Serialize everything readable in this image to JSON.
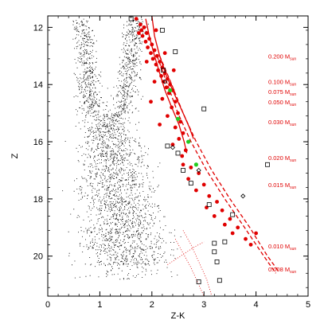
{
  "chart_data": {
    "type": "scatter",
    "xlabel": "Z-K",
    "ylabel": "Z",
    "xlim": [
      0,
      5
    ],
    "ylim": [
      21.4,
      11.6
    ],
    "y_inverted": true,
    "x_ticks": [
      "0",
      "1",
      "2",
      "3",
      "4",
      "5"
    ],
    "x_tick_values": [
      0,
      1,
      2,
      3,
      4,
      5
    ],
    "y_ticks": [
      "12",
      "14",
      "16",
      "18",
      "20"
    ],
    "y_tick_values": [
      12,
      14,
      16,
      18,
      20
    ],
    "colors": {
      "field_points": "#000000",
      "candidates": "#e00000",
      "confirmed": "#22cc22",
      "tracks": "#e00000",
      "labels": "#e00000",
      "open_squares": "#000000"
    },
    "mass_labels": [
      {
        "value": "0.200 M",
        "sub": "sun",
        "z": 13.0
      },
      {
        "value": "0.100 M",
        "sub": "sun",
        "z": 13.9
      },
      {
        "value": "0.075 M",
        "sub": "sun",
        "z": 14.25
      },
      {
        "value": "0.050 M",
        "sub": "sun",
        "z": 14.6
      },
      {
        "value": "0.030 M",
        "sub": "sun",
        "z": 15.3
      },
      {
        "value": "0.020 M",
        "sub": "sun",
        "z": 16.55
      },
      {
        "value": "0.015 M",
        "sub": "sun",
        "z": 17.5
      },
      {
        "value": "0.010 M",
        "sub": "sun",
        "z": 19.65
      },
      {
        "value": "0.008 M",
        "sub": "sun",
        "z": 20.45
      }
    ],
    "tracks": [
      {
        "style": "solid",
        "points": [
          [
            1.88,
            11.7
          ],
          [
            1.95,
            12.3
          ],
          [
            2.05,
            13.0
          ],
          [
            2.15,
            13.6
          ],
          [
            2.25,
            14.2
          ],
          [
            2.38,
            14.8
          ],
          [
            2.52,
            15.4
          ],
          [
            2.62,
            16.0
          ],
          [
            2.67,
            16.4
          ]
        ]
      },
      {
        "style": "solid",
        "points": [
          [
            2.0,
            11.6
          ],
          [
            2.05,
            12.3
          ],
          [
            2.15,
            13.0
          ],
          [
            2.28,
            13.7
          ],
          [
            2.45,
            14.4
          ],
          [
            2.6,
            15.0
          ],
          [
            2.72,
            15.5
          ],
          [
            2.8,
            15.9
          ]
        ]
      },
      {
        "style": "dashed",
        "points": [
          [
            2.1,
            13.0
          ],
          [
            2.3,
            14.0
          ],
          [
            2.5,
            15.0
          ],
          [
            2.75,
            16.0
          ],
          [
            3.05,
            17.0
          ],
          [
            3.4,
            18.0
          ],
          [
            3.78,
            19.0
          ],
          [
            4.15,
            20.0
          ],
          [
            4.38,
            20.6
          ]
        ]
      },
      {
        "style": "dashed",
        "points": [
          [
            2.15,
            13.0
          ],
          [
            2.38,
            14.0
          ],
          [
            2.6,
            15.0
          ],
          [
            2.85,
            16.0
          ],
          [
            3.15,
            17.0
          ],
          [
            3.5,
            18.0
          ],
          [
            3.88,
            19.0
          ],
          [
            4.22,
            20.0
          ],
          [
            4.42,
            20.5
          ]
        ]
      },
      {
        "style": "dotted",
        "points": [
          [
            2.45,
            19.4
          ],
          [
            2.6,
            19.9
          ],
          [
            2.75,
            20.4
          ],
          [
            2.85,
            20.8
          ],
          [
            2.95,
            21.2
          ],
          [
            3.0,
            21.4
          ]
        ]
      },
      {
        "style": "dotted",
        "points": [
          [
            2.6,
            19.1
          ],
          [
            2.75,
            19.6
          ],
          [
            2.9,
            20.2
          ],
          [
            3.05,
            20.8
          ],
          [
            3.15,
            21.4
          ]
        ]
      },
      {
        "style": "dotted",
        "points": [
          [
            2.3,
            20.3
          ],
          [
            2.55,
            20.0
          ],
          [
            2.8,
            19.7
          ],
          [
            3.0,
            19.5
          ]
        ]
      }
    ],
    "candidates": [
      [
        1.7,
        11.7
      ],
      [
        1.78,
        11.9
      ],
      [
        1.85,
        12.0
      ],
      [
        1.8,
        12.1
      ],
      [
        1.9,
        12.2
      ],
      [
        1.82,
        12.3
      ],
      [
        1.95,
        12.4
      ],
      [
        1.88,
        12.5
      ],
      [
        2.0,
        12.6
      ],
      [
        1.92,
        12.7
      ],
      [
        2.05,
        12.8
      ],
      [
        1.98,
        12.9
      ],
      [
        2.1,
        13.0
      ],
      [
        2.02,
        13.1
      ],
      [
        2.15,
        13.2
      ],
      [
        2.08,
        13.3
      ],
      [
        2.2,
        13.4
      ],
      [
        2.12,
        13.5
      ],
      [
        2.25,
        13.6
      ],
      [
        2.18,
        13.7
      ],
      [
        2.3,
        13.8
      ],
      [
        2.22,
        13.9
      ],
      [
        2.35,
        14.0
      ],
      [
        2.28,
        14.1
      ],
      [
        2.4,
        14.2
      ],
      [
        2.33,
        14.3
      ],
      [
        2.2,
        14.5
      ],
      [
        2.45,
        14.6
      ],
      [
        2.38,
        14.8
      ],
      [
        2.5,
        15.0
      ],
      [
        2.3,
        15.1
      ],
      [
        2.55,
        15.3
      ],
      [
        2.45,
        15.5
      ],
      [
        2.6,
        15.7
      ],
      [
        2.52,
        15.9
      ],
      [
        2.4,
        16.1
      ],
      [
        2.65,
        16.3
      ],
      [
        2.58,
        16.5
      ],
      [
        2.75,
        16.9
      ],
      [
        2.9,
        17.1
      ],
      [
        2.7,
        17.3
      ],
      [
        3.0,
        17.5
      ],
      [
        2.85,
        17.7
      ],
      [
        3.1,
        17.9
      ],
      [
        3.25,
        18.1
      ],
      [
        3.05,
        18.3
      ],
      [
        3.35,
        18.4
      ],
      [
        3.2,
        18.6
      ],
      [
        3.5,
        18.7
      ],
      [
        3.4,
        18.9
      ],
      [
        3.65,
        19.0
      ],
      [
        3.55,
        19.2
      ],
      [
        3.8,
        19.4
      ],
      [
        3.9,
        19.6
      ],
      [
        4.0,
        19.2
      ],
      [
        2.6,
        16.8
      ],
      [
        1.75,
        12.2
      ],
      [
        2.08,
        12.1
      ],
      [
        1.9,
        13.2
      ],
      [
        2.25,
        12.9
      ],
      [
        2.05,
        13.9
      ],
      [
        2.42,
        13.5
      ],
      [
        1.98,
        14.6
      ],
      [
        2.15,
        15.4
      ]
    ],
    "confirmed": [
      [
        2.35,
        14.2
      ],
      [
        2.5,
        15.2
      ],
      [
        2.7,
        16.0
      ],
      [
        2.85,
        16.8
      ]
    ],
    "open_squares": [
      [
        1.6,
        11.7
      ],
      [
        2.2,
        12.1
      ],
      [
        2.45,
        12.85
      ],
      [
        2.22,
        13.5
      ],
      [
        3.0,
        14.85
      ],
      [
        2.5,
        16.4
      ],
      [
        2.6,
        17.0
      ],
      [
        2.75,
        17.45
      ],
      [
        3.1,
        18.2
      ],
      [
        3.55,
        18.55
      ],
      [
        4.22,
        16.8
      ],
      [
        3.2,
        19.55
      ],
      [
        3.2,
        19.85
      ],
      [
        3.25,
        20.2
      ],
      [
        3.3,
        20.85
      ],
      [
        2.9,
        20.9
      ],
      [
        3.4,
        19.5
      ],
      [
        2.3,
        16.15
      ]
    ],
    "open_diamonds": [
      [
        2.25,
        13.9
      ],
      [
        2.4,
        16.2
      ],
      [
        2.9,
        17.0
      ],
      [
        3.75,
        17.9
      ]
    ]
  }
}
